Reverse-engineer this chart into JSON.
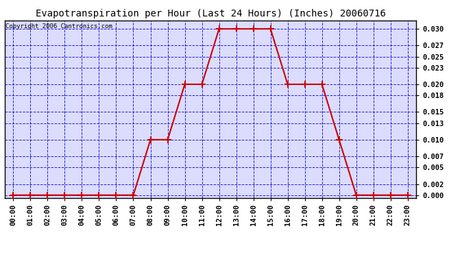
{
  "title": "Evapotranspiration per Hour (Last 24 Hours) (Inches) 20060716",
  "copyright": "Copyright 2006 Cantronics.com",
  "hours": [
    "00:00",
    "01:00",
    "02:00",
    "03:00",
    "04:00",
    "05:00",
    "06:00",
    "07:00",
    "08:00",
    "09:00",
    "10:00",
    "11:00",
    "12:00",
    "13:00",
    "14:00",
    "15:00",
    "16:00",
    "17:00",
    "18:00",
    "19:00",
    "20:00",
    "21:00",
    "22:00",
    "23:00"
  ],
  "values": [
    0.0,
    0.0,
    0.0,
    0.0,
    0.0,
    0.0,
    0.0,
    0.0,
    0.01,
    0.01,
    0.02,
    0.02,
    0.03,
    0.03,
    0.03,
    0.03,
    0.02,
    0.02,
    0.02,
    0.01,
    0.0,
    0.0,
    0.0,
    0.0
  ],
  "yticks": [
    0.0,
    0.002,
    0.005,
    0.007,
    0.01,
    0.013,
    0.015,
    0.018,
    0.02,
    0.023,
    0.025,
    0.027,
    0.03
  ],
  "ymax": 0.0315,
  "ymin": -0.0005,
  "line_color": "#cc0000",
  "marker_color": "#cc0000",
  "grid_color": "#0000cc",
  "background_color": "#dcdcff",
  "fig_background": "#ffffff",
  "title_fontsize": 10,
  "copyright_fontsize": 6.5,
  "tick_fontsize": 7.5,
  "title_color": "#000000",
  "border_color": "#000000"
}
